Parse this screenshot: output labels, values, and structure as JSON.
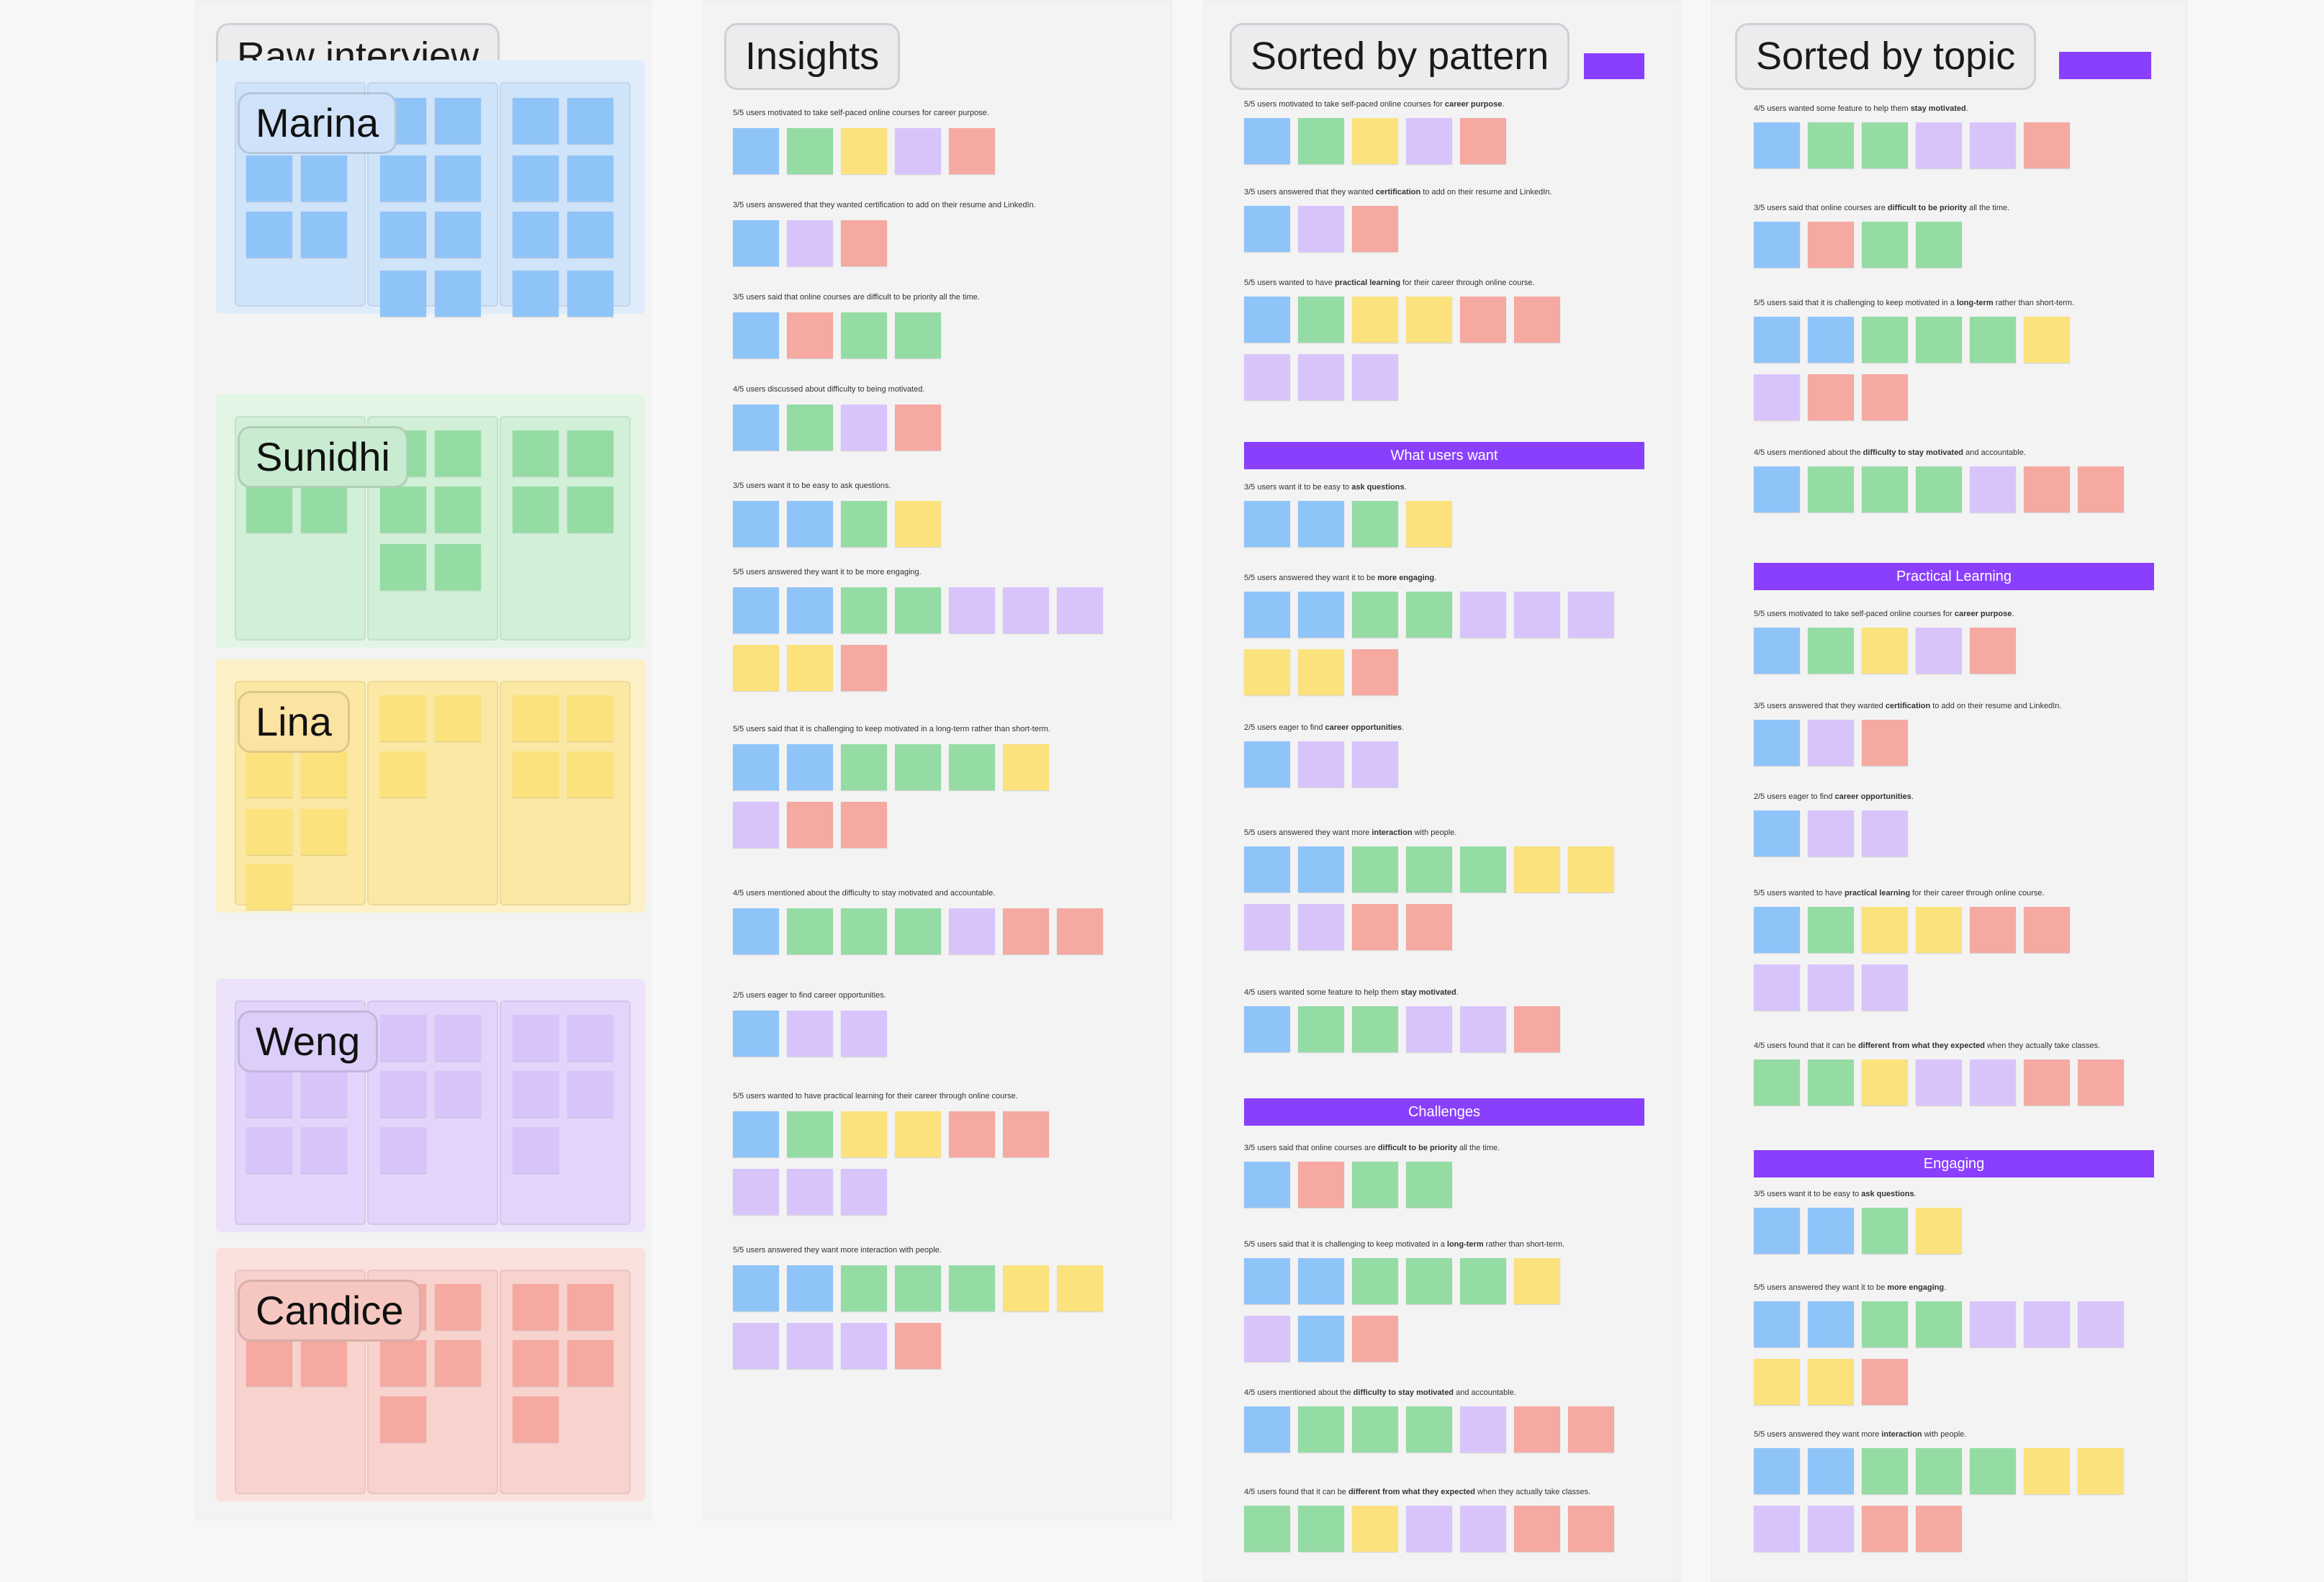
{
  "frames": {
    "raw": "Raw interview",
    "insights": "Insights",
    "pattern": "Sorted by pattern",
    "topic": "Sorted by topic"
  },
  "participants": [
    {
      "name": "Marina",
      "color": "blue"
    },
    {
      "name": "Sunidhi",
      "color": "green"
    },
    {
      "name": "Lina",
      "color": "yellow"
    },
    {
      "name": "Weng",
      "color": "purple"
    },
    {
      "name": "Candice",
      "color": "red"
    }
  ],
  "insight_groups": [
    {
      "title": "5/5 users motivated to take self-paced online courses for career purpose.",
      "notes": [
        [
          "blue",
          "green",
          "yellow",
          "purple",
          "red"
        ]
      ]
    },
    {
      "title": "3/5 users answered that they wanted certification to add on their resume and LinkedIn.",
      "notes": [
        [
          "blue",
          "purple",
          "red"
        ]
      ]
    },
    {
      "title": "3/5 users said that online courses are difficult to be priority all the time.",
      "notes": [
        [
          "blue",
          "red",
          "green",
          "green"
        ]
      ]
    },
    {
      "title": "4/5 users discussed about difficulty to being motivated.",
      "notes": [
        [
          "blue",
          "green",
          "purple",
          "red"
        ]
      ]
    },
    {
      "title": "3/5 users want it to be easy to ask questions.",
      "notes": [
        [
          "blue",
          "blue",
          "green",
          "yellow"
        ]
      ]
    },
    {
      "title": "5/5 users answered they want it to be more engaging.",
      "notes": [
        [
          "blue",
          "blue",
          "green",
          "green",
          "purple",
          "purple",
          "purple"
        ],
        [
          "yellow",
          "yellow",
          "red"
        ]
      ]
    },
    {
      "title": "5/5 users said that it is challenging to keep motivated in a long-term rather than short-term.",
      "notes": [
        [
          "blue",
          "blue",
          "green",
          "green",
          "green",
          "yellow"
        ],
        [
          "purple",
          "red",
          "red"
        ]
      ]
    },
    {
      "title": "4/5 users mentioned about the difficulty to stay motivated and accountable.",
      "notes": [
        [
          "blue",
          "green",
          "green",
          "green",
          "purple",
          "red",
          "red"
        ]
      ]
    },
    {
      "title": "2/5 users eager to find career opportunities.",
      "notes": [
        [
          "blue",
          "purple",
          "purple"
        ]
      ]
    },
    {
      "title": "5/5 users wanted to have practical learning for their career through online course.",
      "notes": [
        [
          "blue",
          "green",
          "yellow",
          "yellow",
          "red",
          "red"
        ],
        [
          "purple",
          "purple",
          "purple"
        ]
      ]
    },
    {
      "title": "5/5 users answered they want more interaction with people.",
      "notes": [
        [
          "blue",
          "blue",
          "green",
          "green",
          "green",
          "yellow",
          "yellow"
        ],
        [
          "purple",
          "purple",
          "purple",
          "red"
        ]
      ]
    }
  ],
  "pattern_sections": [
    {
      "banner": null,
      "groups": [
        {
          "pre": "5/5 users motivated to take self-paced online courses for ",
          "bold": "career purpose",
          "post": ".",
          "notes": [
            [
              "blue",
              "green",
              "yellow",
              "purple",
              "red"
            ]
          ]
        },
        {
          "pre": "3/5 users answered that they wanted ",
          "bold": "certification",
          "post": " to add on their resume and LinkedIn.",
          "notes": [
            [
              "blue",
              "purple",
              "red"
            ]
          ]
        },
        {
          "pre": "5/5 users wanted to have ",
          "bold": "practical learning",
          "post": " for their career through online course.",
          "notes": [
            [
              "blue",
              "green",
              "yellow",
              "yellow",
              "red",
              "red"
            ],
            [
              "purple",
              "purple",
              "purple"
            ]
          ]
        }
      ]
    },
    {
      "banner": "What users want",
      "groups": [
        {
          "pre": "3/5 users want it to be easy to ",
          "bold": "ask questions",
          "post": ".",
          "notes": [
            [
              "blue",
              "blue",
              "green",
              "yellow"
            ]
          ]
        },
        {
          "pre": "5/5 users answered they want it to be ",
          "bold": "more engaging",
          "post": ".",
          "notes": [
            [
              "blue",
              "blue",
              "green",
              "green",
              "purple",
              "purple",
              "purple"
            ],
            [
              "yellow",
              "yellow",
              "red"
            ]
          ]
        },
        {
          "pre": "2/5 users eager to find ",
          "bold": "career opportunities",
          "post": ".",
          "notes": [
            [
              "blue",
              "purple",
              "purple"
            ]
          ]
        },
        {
          "pre": "5/5 users answered they want more ",
          "bold": "interaction",
          "post": " with people.",
          "notes": [
            [
              "blue",
              "blue",
              "green",
              "green",
              "green",
              "yellow",
              "yellow"
            ],
            [
              "purple",
              "purple",
              "red",
              "red"
            ]
          ]
        },
        {
          "pre": "4/5 users wanted some feature to help them ",
          "bold": "stay motivated",
          "post": ".",
          "notes": [
            [
              "blue",
              "green",
              "green",
              "purple",
              "purple",
              "red"
            ]
          ]
        }
      ]
    },
    {
      "banner": "Challenges",
      "groups": [
        {
          "pre": "3/5 users said that online courses are ",
          "bold": "difficult to be priority",
          "post": " all the time.",
          "notes": [
            [
              "blue",
              "red",
              "green",
              "green"
            ]
          ]
        },
        {
          "pre": "5/5 users said that it is challenging to keep motivated in a ",
          "bold": "long-term",
          "post": " rather than short-term.",
          "notes": [
            [
              "blue",
              "blue",
              "green",
              "green",
              "green",
              "yellow"
            ],
            [
              "purple",
              "blue",
              "red"
            ]
          ]
        },
        {
          "pre": "4/5 users mentioned about the ",
          "bold": "difficulty to stay motivated",
          "post": " and accountable.",
          "notes": [
            [
              "blue",
              "green",
              "green",
              "green",
              "purple",
              "red",
              "red"
            ]
          ]
        },
        {
          "pre": "4/5 users found that it can be ",
          "bold": "different from what they expected",
          "post": " when they actually take classes.",
          "notes": [
            [
              "green",
              "green",
              "yellow",
              "purple",
              "purple",
              "red",
              "red"
            ]
          ]
        }
      ]
    }
  ],
  "topic_sections": [
    {
      "banner": null,
      "groups": [
        {
          "pre": "4/5 users wanted some feature to help them ",
          "bold": "stay motivated",
          "post": ".",
          "notes": [
            [
              "blue",
              "green",
              "green",
              "purple",
              "purple",
              "red"
            ]
          ]
        },
        {
          "pre": "3/5 users said that online courses are ",
          "bold": "difficult to be priority",
          "post": " all the time.",
          "notes": [
            [
              "blue",
              "red",
              "green",
              "green"
            ]
          ]
        },
        {
          "pre": "5/5 users said that it is challenging to keep motivated in a ",
          "bold": "long-term",
          "post": " rather than short-term.",
          "notes": [
            [
              "blue",
              "blue",
              "green",
              "green",
              "green",
              "yellow"
            ],
            [
              "purple",
              "red",
              "red"
            ]
          ]
        },
        {
          "pre": "4/5 users mentioned about the ",
          "bold": "difficulty to stay motivated",
          "post": " and accountable.",
          "notes": [
            [
              "blue",
              "green",
              "green",
              "green",
              "purple",
              "red",
              "red"
            ]
          ]
        }
      ]
    },
    {
      "banner": "Practical Learning",
      "groups": [
        {
          "pre": "5/5 users motivated to take self-paced online courses for ",
          "bold": "career purpose",
          "post": ".",
          "notes": [
            [
              "blue",
              "green",
              "yellow",
              "purple",
              "red"
            ]
          ]
        },
        {
          "pre": "3/5 users answered that they wanted ",
          "bold": "certification",
          "post": " to add on their resume and LinkedIn.",
          "notes": [
            [
              "blue",
              "purple",
              "red"
            ]
          ]
        },
        {
          "pre": "2/5 users eager to find ",
          "bold": "career opportunities",
          "post": ".",
          "notes": [
            [
              "blue",
              "purple",
              "purple"
            ]
          ]
        },
        {
          "pre": "5/5 users wanted to have ",
          "bold": "practical learning",
          "post": " for their career through online course.",
          "notes": [
            [
              "blue",
              "green",
              "yellow",
              "yellow",
              "red",
              "red"
            ],
            [
              "purple",
              "purple",
              "purple"
            ]
          ]
        },
        {
          "pre": "4/5 users found that it can be ",
          "bold": "different from what they expected",
          "post": " when they actually take classes.",
          "notes": [
            [
              "green",
              "green",
              "yellow",
              "purple",
              "purple",
              "red",
              "red"
            ]
          ]
        }
      ]
    },
    {
      "banner": "Engaging",
      "groups": [
        {
          "pre": "3/5 users want it to be easy to ",
          "bold": "ask questions",
          "post": ".",
          "notes": [
            [
              "blue",
              "blue",
              "green",
              "yellow"
            ]
          ]
        },
        {
          "pre": "5/5 users answered they want it to be ",
          "bold": "more engaging",
          "post": ".",
          "notes": [
            [
              "blue",
              "blue",
              "green",
              "green",
              "purple",
              "purple",
              "purple"
            ],
            [
              "yellow",
              "yellow",
              "red"
            ]
          ]
        },
        {
          "pre": "5/5 users answered they want more ",
          "bold": "interaction",
          "post": " with people.",
          "notes": [
            [
              "blue",
              "blue",
              "green",
              "green",
              "green",
              "yellow",
              "yellow"
            ],
            [
              "purple",
              "purple",
              "red",
              "red"
            ]
          ]
        }
      ]
    }
  ]
}
